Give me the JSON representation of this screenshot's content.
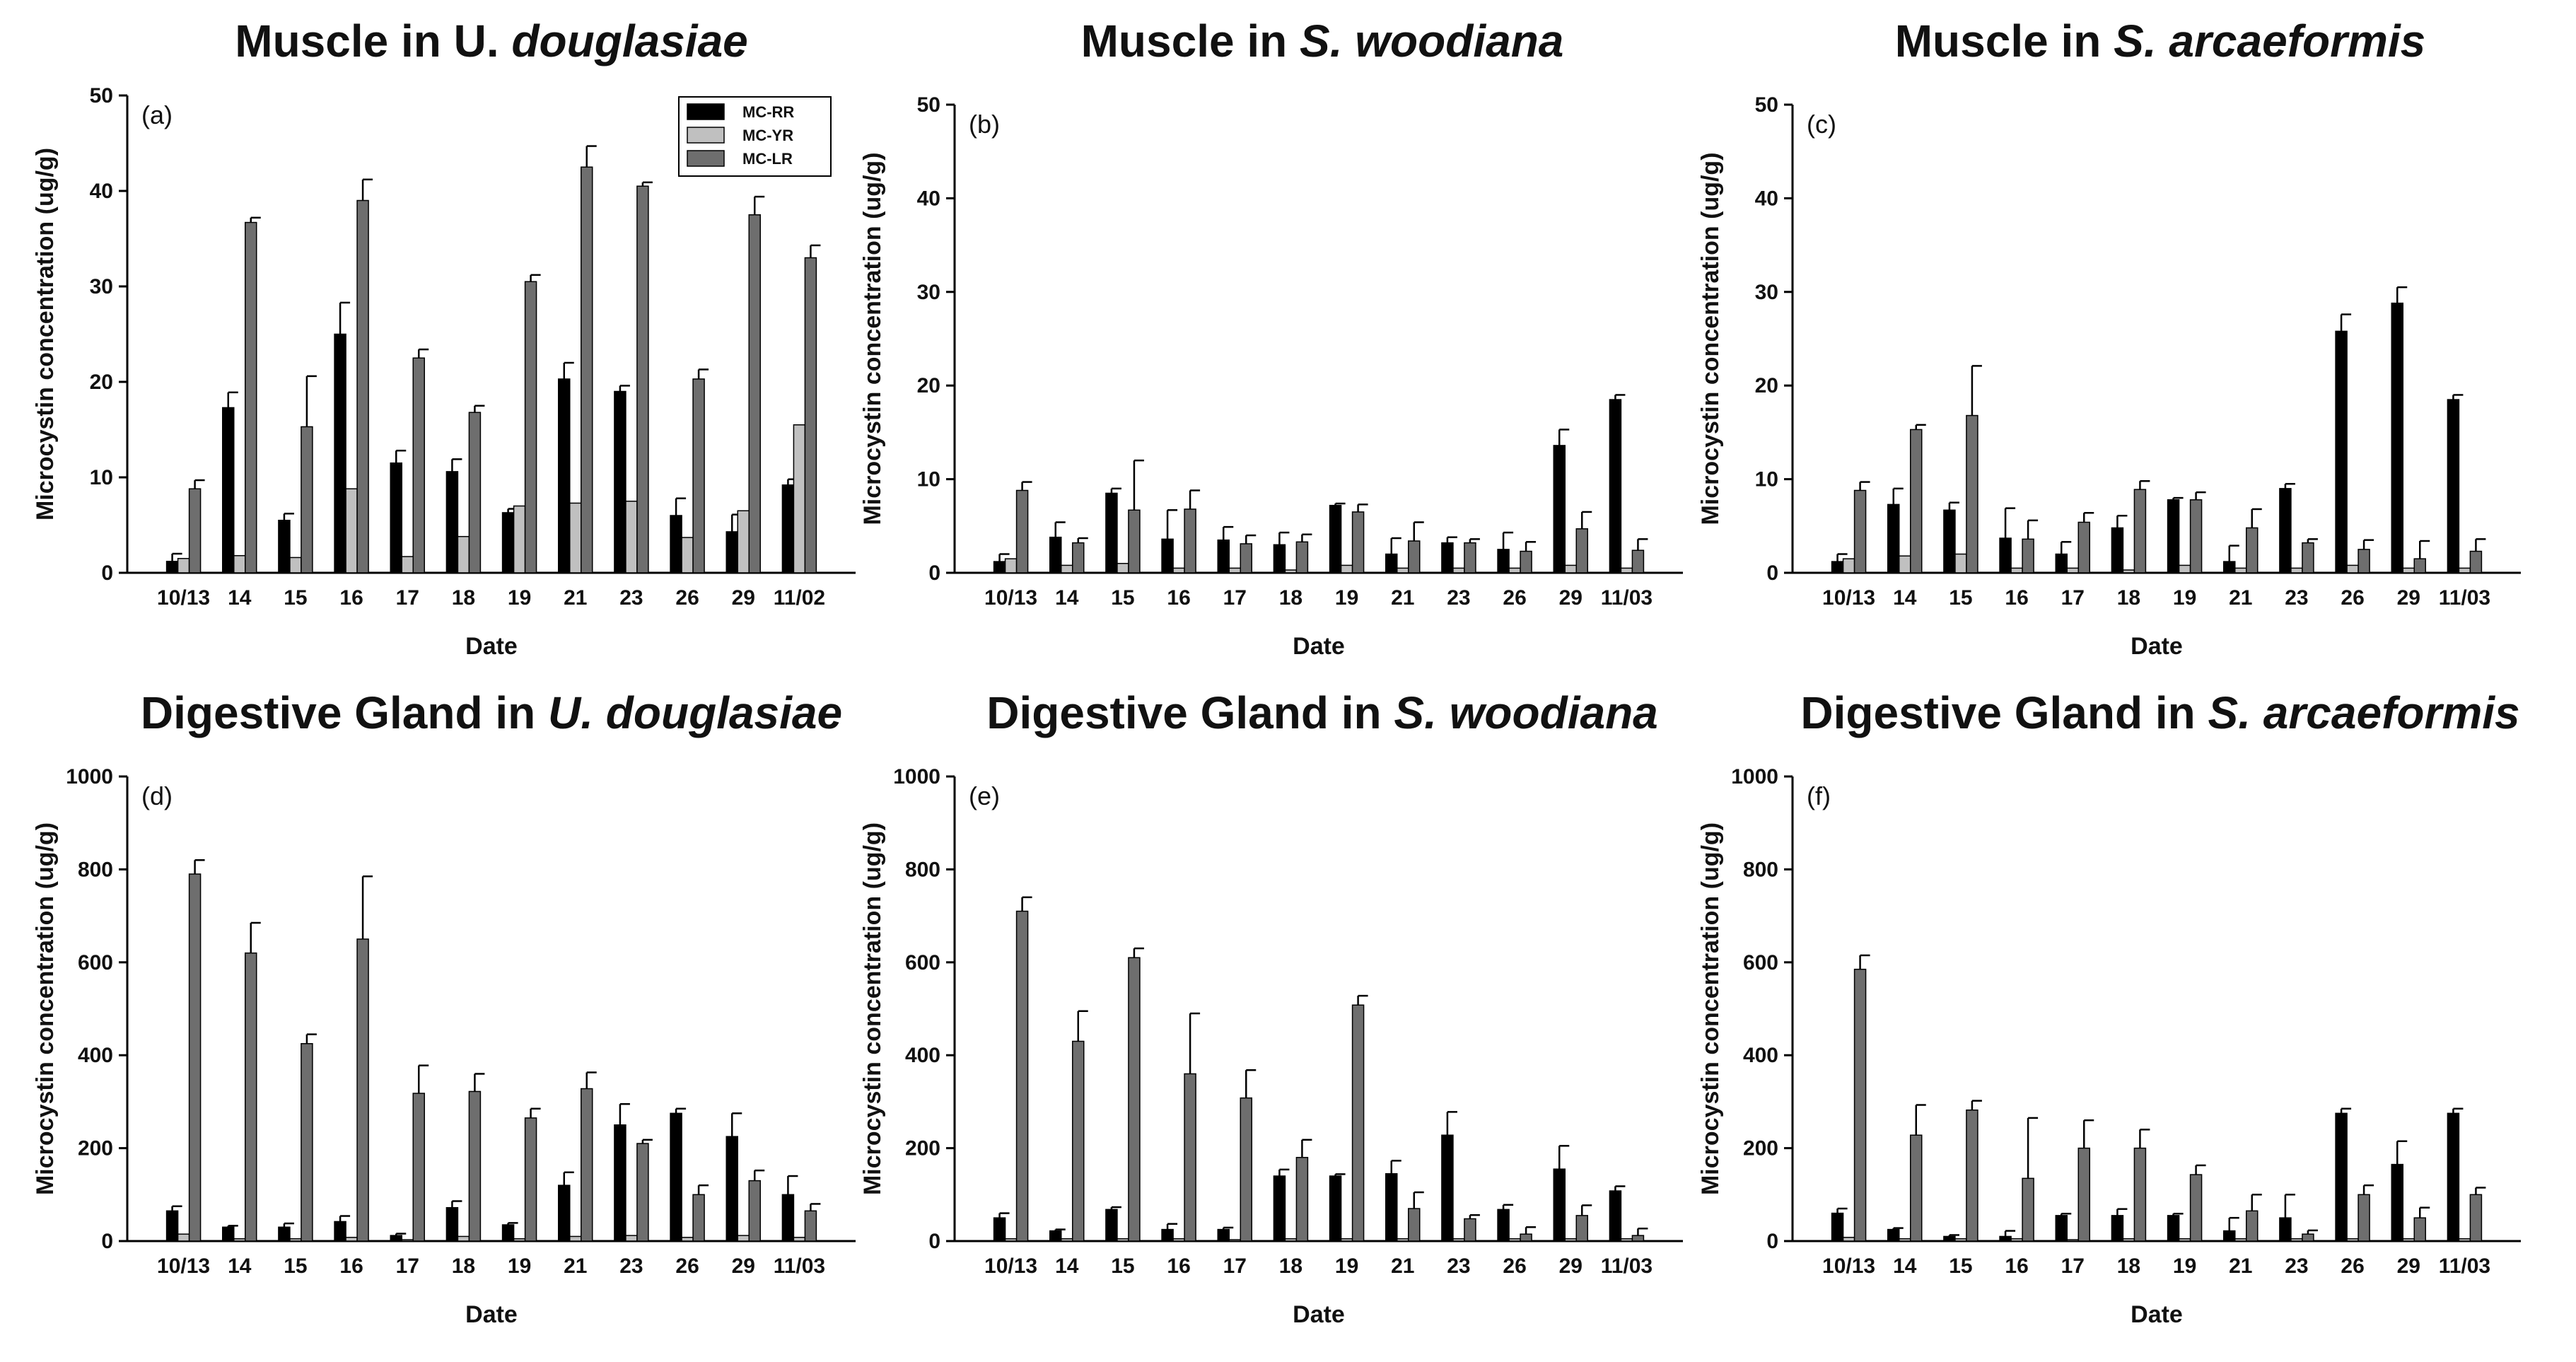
{
  "chart_data": [
    {
      "type": "bar",
      "panel_label": "(a)",
      "title_plain": "Muscle in U. ",
      "title_italic": "douglasiae",
      "xlabel": "Date",
      "ylabel": "Microcystin concentration (ug/g)",
      "ylim": [
        0,
        50
      ],
      "yticks": [
        0,
        10,
        20,
        30,
        40,
        50
      ],
      "categories": [
        "10/13",
        "14",
        "15",
        "16",
        "17",
        "18",
        "19",
        "21",
        "23",
        "26",
        "29",
        "11/02"
      ],
      "legend": "top-right",
      "series": [
        {
          "name": "MC-RR",
          "color": "#000000",
          "values": [
            1.2,
            17.3,
            5.5,
            25.0,
            11.5,
            10.6,
            6.3,
            20.3,
            19.0,
            6.0,
            4.3,
            9.2
          ],
          "errors": [
            0.8,
            1.6,
            0.7,
            3.3,
            1.3,
            1.3,
            0.4,
            1.7,
            0.6,
            1.8,
            1.8,
            0.6
          ]
        },
        {
          "name": "MC-YR",
          "color": "#c0c0c0",
          "values": [
            1.5,
            1.8,
            1.6,
            8.8,
            1.7,
            3.8,
            7.0,
            7.3,
            7.5,
            3.7,
            6.5,
            15.5
          ],
          "errors": [
            0,
            0,
            0,
            0,
            0,
            0,
            0,
            0,
            0,
            0,
            0,
            0
          ]
        },
        {
          "name": "MC-LR",
          "color": "#6e6e6e",
          "values": [
            8.8,
            36.7,
            15.3,
            39.0,
            22.5,
            16.8,
            30.5,
            42.5,
            40.5,
            20.3,
            37.5,
            33.0
          ],
          "errors": [
            0.9,
            0.5,
            5.3,
            2.2,
            0.9,
            0.7,
            0.7,
            2.2,
            0.4,
            1.0,
            1.9,
            1.3
          ]
        }
      ]
    },
    {
      "type": "bar",
      "panel_label": "(b)",
      "title_plain": "Muscle in ",
      "title_italic": "S. woodiana",
      "xlabel": "Date",
      "ylabel": "Microcystin concentration (ug/g)",
      "ylim": [
        0,
        50
      ],
      "yticks": [
        0,
        10,
        20,
        30,
        40,
        50
      ],
      "categories": [
        "10/13",
        "14",
        "15",
        "16",
        "17",
        "18",
        "19",
        "21",
        "23",
        "26",
        "29",
        "11/03"
      ],
      "series": [
        {
          "name": "MC-RR",
          "color": "#000000",
          "values": [
            1.2,
            3.8,
            8.5,
            3.6,
            3.5,
            3.0,
            7.2,
            2.0,
            3.2,
            2.5,
            13.6,
            18.5
          ],
          "errors": [
            0.8,
            1.6,
            0.5,
            3.1,
            1.4,
            1.3,
            0.2,
            1.7,
            0.6,
            1.8,
            1.7,
            0.5
          ]
        },
        {
          "name": "MC-YR",
          "color": "#c0c0c0",
          "values": [
            1.5,
            0.8,
            1.0,
            0.5,
            0.5,
            0.3,
            0.8,
            0.5,
            0.5,
            0.5,
            0.8,
            0.5
          ],
          "errors": [
            0,
            0,
            0,
            0,
            0,
            0,
            0,
            0,
            0,
            0,
            0,
            0
          ]
        },
        {
          "name": "MC-LR",
          "color": "#6e6e6e",
          "values": [
            8.8,
            3.2,
            6.7,
            6.8,
            3.1,
            3.3,
            6.5,
            3.4,
            3.2,
            2.3,
            4.7,
            2.4
          ],
          "errors": [
            0.9,
            0.5,
            5.3,
            2.0,
            0.9,
            0.8,
            0.8,
            2.0,
            0.4,
            1.0,
            1.8,
            1.2
          ]
        }
      ]
    },
    {
      "type": "bar",
      "panel_label": "(c)",
      "title_plain": "Muscle in ",
      "title_italic": "S. arcaeformis",
      "xlabel": "Date",
      "ylabel": "Microcystin concentration (ug/g)",
      "ylim": [
        0,
        50
      ],
      "yticks": [
        0,
        10,
        20,
        30,
        40,
        50
      ],
      "categories": [
        "10/13",
        "14",
        "15",
        "16",
        "17",
        "18",
        "19",
        "21",
        "23",
        "26",
        "29",
        "11/03"
      ],
      "series": [
        {
          "name": "MC-RR",
          "color": "#000000",
          "values": [
            1.2,
            7.3,
            6.7,
            3.7,
            2.0,
            4.8,
            7.8,
            1.2,
            9.0,
            25.8,
            28.8,
            18.5
          ],
          "errors": [
            0.8,
            1.7,
            0.8,
            3.2,
            1.3,
            1.3,
            0.2,
            1.7,
            0.5,
            1.8,
            1.7,
            0.5
          ]
        },
        {
          "name": "MC-YR",
          "color": "#c0c0c0",
          "values": [
            1.5,
            1.8,
            2.0,
            0.5,
            0.5,
            0.3,
            0.8,
            0.5,
            0.5,
            0.8,
            0.5,
            0.5
          ],
          "errors": [
            0,
            0,
            0,
            0,
            0,
            0,
            0,
            0,
            0,
            0,
            0,
            0
          ]
        },
        {
          "name": "MC-LR",
          "color": "#6e6e6e",
          "values": [
            8.8,
            15.3,
            16.8,
            3.6,
            5.4,
            8.9,
            7.8,
            4.8,
            3.2,
            2.5,
            1.5,
            2.3
          ],
          "errors": [
            0.9,
            0.5,
            5.3,
            2.0,
            1.0,
            0.9,
            0.8,
            2.0,
            0.4,
            1.0,
            1.9,
            1.3
          ]
        }
      ]
    },
    {
      "type": "bar",
      "panel_label": "(d)",
      "title_plain": "Digestive Gland in ",
      "title_italic": "U. douglasiae",
      "xlabel": "Date",
      "ylabel": "Microcystin concentration (ug/g)",
      "ylim": [
        0,
        1000
      ],
      "yticks": [
        0,
        200,
        400,
        600,
        800,
        1000
      ],
      "categories": [
        "10/13",
        "14",
        "15",
        "16",
        "17",
        "18",
        "19",
        "21",
        "23",
        "26",
        "29",
        "11/03"
      ],
      "series": [
        {
          "name": "MC-RR",
          "color": "#000000",
          "values": [
            65,
            30,
            30,
            42,
            12,
            72,
            35,
            120,
            250,
            275,
            225,
            100
          ],
          "errors": [
            10,
            3,
            8,
            12,
            4,
            14,
            4,
            28,
            45,
            10,
            50,
            40
          ]
        },
        {
          "name": "MC-YR",
          "color": "#c0c0c0",
          "values": [
            15,
            5,
            5,
            8,
            3,
            10,
            5,
            10,
            12,
            8,
            12,
            8
          ],
          "errors": [
            0,
            0,
            0,
            0,
            0,
            0,
            0,
            0,
            0,
            0,
            0,
            0
          ]
        },
        {
          "name": "MC-LR",
          "color": "#6e6e6e",
          "values": [
            790,
            620,
            425,
            650,
            318,
            322,
            265,
            328,
            210,
            100,
            130,
            65
          ],
          "errors": [
            30,
            65,
            20,
            135,
            60,
            38,
            20,
            35,
            8,
            20,
            22,
            15
          ]
        }
      ]
    },
    {
      "type": "bar",
      "panel_label": "(e)",
      "title_plain": "Digestive Gland in ",
      "title_italic": "S. woodiana",
      "xlabel": "Date",
      "ylabel": "Microcystin concentration (ug/g)",
      "ylim": [
        0,
        1000
      ],
      "yticks": [
        0,
        200,
        400,
        600,
        800,
        1000
      ],
      "categories": [
        "10/13",
        "14",
        "15",
        "16",
        "17",
        "18",
        "19",
        "21",
        "23",
        "26",
        "29",
        "11/03"
      ],
      "series": [
        {
          "name": "MC-RR",
          "color": "#000000",
          "values": [
            50,
            22,
            68,
            25,
            25,
            140,
            140,
            145,
            228,
            68,
            155,
            108
          ],
          "errors": [
            10,
            3,
            5,
            12,
            4,
            14,
            4,
            28,
            50,
            10,
            50,
            10
          ]
        },
        {
          "name": "MC-YR",
          "color": "#c0c0c0",
          "values": [
            5,
            5,
            5,
            5,
            3,
            5,
            5,
            5,
            5,
            5,
            5,
            5
          ],
          "errors": [
            0,
            0,
            0,
            0,
            0,
            0,
            0,
            0,
            0,
            0,
            0,
            0
          ]
        },
        {
          "name": "MC-LR",
          "color": "#6e6e6e",
          "values": [
            710,
            430,
            610,
            360,
            308,
            180,
            508,
            70,
            48,
            15,
            55,
            12
          ],
          "errors": [
            30,
            65,
            20,
            130,
            60,
            38,
            20,
            35,
            8,
            15,
            22,
            15
          ]
        }
      ]
    },
    {
      "type": "bar",
      "panel_label": "(f)",
      "title_plain": "Digestive Gland  in ",
      "title_italic": "S. arcaeformis",
      "xlabel": "Date",
      "ylabel": "Microcystin concentration (ug/g)",
      "ylim": [
        0,
        1000
      ],
      "yticks": [
        0,
        200,
        400,
        600,
        800,
        1000
      ],
      "categories": [
        "10/13",
        "14",
        "15",
        "16",
        "17",
        "18",
        "19",
        "21",
        "23",
        "26",
        "29",
        "11/03"
      ],
      "series": [
        {
          "name": "MC-RR",
          "color": "#000000",
          "values": [
            60,
            25,
            10,
            10,
            55,
            55,
            55,
            22,
            50,
            275,
            165,
            275
          ],
          "errors": [
            10,
            3,
            3,
            12,
            4,
            14,
            4,
            28,
            50,
            10,
            50,
            10
          ]
        },
        {
          "name": "MC-YR",
          "color": "#c0c0c0",
          "values": [
            8,
            5,
            5,
            5,
            3,
            5,
            5,
            5,
            5,
            5,
            5,
            5
          ],
          "errors": [
            0,
            0,
            0,
            0,
            0,
            0,
            0,
            0,
            0,
            0,
            0,
            0
          ]
        },
        {
          "name": "MC-LR",
          "color": "#6e6e6e",
          "values": [
            585,
            228,
            282,
            135,
            200,
            200,
            143,
            65,
            15,
            100,
            50,
            100
          ],
          "errors": [
            30,
            65,
            20,
            130,
            60,
            40,
            20,
            35,
            8,
            20,
            22,
            15
          ]
        }
      ]
    }
  ]
}
